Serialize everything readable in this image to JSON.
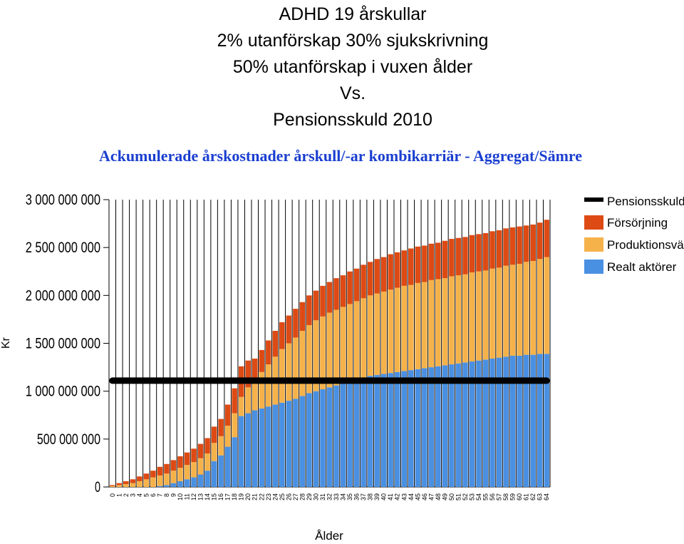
{
  "slide": {
    "title_lines": [
      "ADHD 19 årskullar",
      "2% utanförskap  30% sjukskrivning",
      "50% utanförskap i vuxen ålder",
      "Vs.",
      "Pensionsskuld 2010"
    ]
  },
  "chart_data": {
    "type": "bar",
    "stacked": true,
    "title": "Ackumulerade årskostnader årskull/-ar kombikarriär - Aggregat/Sämre",
    "xlabel": "Ålder",
    "ylabel": "Kr",
    "ylim": [
      0,
      3000000000
    ],
    "yticks": [
      0,
      500000000,
      1000000000,
      1500000000,
      2000000000,
      2500000000,
      3000000000
    ],
    "ytick_labels": [
      "0",
      "500 000 000",
      "1 000 000 000",
      "1 500 000 000",
      "2 000 000 000",
      "2 500 000 000",
      "3 000 000 000"
    ],
    "grid": "vertical",
    "legend_position": "right",
    "categories": [
      "0",
      "1",
      "2",
      "3",
      "4",
      "5",
      "6",
      "7",
      "8",
      "9",
      "10",
      "11",
      "12",
      "13",
      "14",
      "15",
      "16",
      "17",
      "18",
      "19",
      "20",
      "21",
      "22",
      "23",
      "24",
      "25",
      "26",
      "27",
      "28",
      "29",
      "30",
      "31",
      "32",
      "33",
      "34",
      "35",
      "36",
      "37",
      "38",
      "39",
      "40",
      "41",
      "42",
      "43",
      "44",
      "45",
      "46",
      "47",
      "48",
      "49",
      "50",
      "51",
      "52",
      "53",
      "54",
      "55",
      "56",
      "57",
      "58",
      "59",
      "60",
      "61",
      "62",
      "63",
      "64"
    ],
    "series": [
      {
        "name": "Realt aktörer",
        "color": "#4a90e2",
        "values": [
          0,
          0,
          0,
          0,
          0,
          0,
          0,
          10000000,
          20000000,
          40000000,
          60000000,
          80000000,
          100000000,
          130000000,
          170000000,
          270000000,
          330000000,
          420000000,
          520000000,
          740000000,
          770000000,
          800000000,
          820000000,
          840000000,
          860000000,
          880000000,
          900000000,
          920000000,
          950000000,
          980000000,
          1000000000,
          1020000000,
          1040000000,
          1060000000,
          1080000000,
          1100000000,
          1120000000,
          1140000000,
          1160000000,
          1170000000,
          1180000000,
          1190000000,
          1200000000,
          1210000000,
          1220000000,
          1230000000,
          1240000000,
          1250000000,
          1260000000,
          1270000000,
          1280000000,
          1290000000,
          1300000000,
          1310000000,
          1320000000,
          1330000000,
          1340000000,
          1350000000,
          1360000000,
          1370000000,
          1370000000,
          1380000000,
          1380000000,
          1390000000,
          1390000000
        ]
      },
      {
        "name": "Produktionsvärde",
        "color": "#f6b24a",
        "values": [
          10000000,
          20000000,
          30000000,
          40000000,
          60000000,
          80000000,
          100000000,
          110000000,
          120000000,
          130000000,
          140000000,
          150000000,
          160000000,
          170000000,
          180000000,
          190000000,
          200000000,
          220000000,
          250000000,
          200000000,
          270000000,
          330000000,
          380000000,
          440000000,
          500000000,
          560000000,
          600000000,
          640000000,
          680000000,
          710000000,
          740000000,
          760000000,
          780000000,
          790000000,
          800000000,
          810000000,
          820000000,
          830000000,
          840000000,
          850000000,
          860000000,
          870000000,
          880000000,
          890000000,
          890000000,
          900000000,
          900000000,
          910000000,
          910000000,
          910000000,
          920000000,
          920000000,
          920000000,
          930000000,
          930000000,
          930000000,
          940000000,
          940000000,
          950000000,
          950000000,
          960000000,
          970000000,
          980000000,
          990000000,
          1010000000
        ]
      },
      {
        "name": "Försörjning",
        "color": "#dd4a14",
        "values": [
          10000000,
          20000000,
          30000000,
          40000000,
          50000000,
          60000000,
          70000000,
          90000000,
          100000000,
          110000000,
          120000000,
          130000000,
          140000000,
          150000000,
          160000000,
          170000000,
          180000000,
          220000000,
          260000000,
          320000000,
          280000000,
          210000000,
          230000000,
          250000000,
          270000000,
          280000000,
          290000000,
          300000000,
          300000000,
          310000000,
          310000000,
          320000000,
          320000000,
          330000000,
          330000000,
          340000000,
          340000000,
          350000000,
          350000000,
          360000000,
          360000000,
          370000000,
          370000000,
          370000000,
          380000000,
          380000000,
          380000000,
          380000000,
          380000000,
          390000000,
          390000000,
          390000000,
          390000000,
          390000000,
          390000000,
          390000000,
          390000000,
          390000000,
          390000000,
          390000000,
          390000000,
          380000000,
          380000000,
          380000000,
          390000000
        ]
      }
    ],
    "line": {
      "name": "Pensionsskuld",
      "color": "#000000",
      "value": 1110000000,
      "x_start": "0",
      "x_end": "64"
    }
  }
}
